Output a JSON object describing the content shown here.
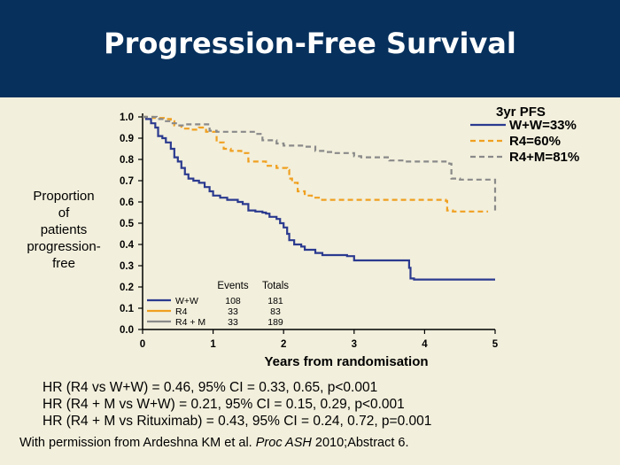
{
  "title": "Progression-Free Survival",
  "chart_data": {
    "type": "line",
    "ylabel": [
      "Proportion",
      "of",
      "patients",
      "progression-",
      "free"
    ],
    "xlabel": "Years from randomisation",
    "xlim": [
      0,
      5
    ],
    "ylim": [
      0,
      1
    ],
    "xticks": [
      "0",
      "1",
      "2",
      "3",
      "4",
      "5"
    ],
    "yticks": [
      "0.0",
      "0.1",
      "0.2",
      "0.3",
      "0.4",
      "0.5",
      "0.6",
      "0.7",
      "0.8",
      "0.9",
      "1.0"
    ],
    "legend_title": "3yr PFS",
    "series": [
      {
        "name": "W+W=33%",
        "color": "#2b3a8f",
        "dash": "",
        "points": [
          [
            0,
            1.0
          ],
          [
            0.05,
            0.99
          ],
          [
            0.12,
            0.97
          ],
          [
            0.18,
            0.95
          ],
          [
            0.22,
            0.91
          ],
          [
            0.28,
            0.9
          ],
          [
            0.33,
            0.88
          ],
          [
            0.4,
            0.85
          ],
          [
            0.45,
            0.81
          ],
          [
            0.5,
            0.79
          ],
          [
            0.55,
            0.76
          ],
          [
            0.6,
            0.73
          ],
          [
            0.65,
            0.71
          ],
          [
            0.72,
            0.7
          ],
          [
            0.8,
            0.69
          ],
          [
            0.88,
            0.67
          ],
          [
            0.95,
            0.65
          ],
          [
            1.0,
            0.63
          ],
          [
            1.1,
            0.62
          ],
          [
            1.2,
            0.61
          ],
          [
            1.35,
            0.6
          ],
          [
            1.42,
            0.59
          ],
          [
            1.5,
            0.56
          ],
          [
            1.6,
            0.555
          ],
          [
            1.7,
            0.55
          ],
          [
            1.75,
            0.545
          ],
          [
            1.8,
            0.53
          ],
          [
            1.9,
            0.52
          ],
          [
            1.95,
            0.5
          ],
          [
            2.0,
            0.48
          ],
          [
            2.05,
            0.45
          ],
          [
            2.08,
            0.42
          ],
          [
            2.15,
            0.4
          ],
          [
            2.25,
            0.39
          ],
          [
            2.3,
            0.375
          ],
          [
            2.45,
            0.36
          ],
          [
            2.55,
            0.35
          ],
          [
            2.9,
            0.345
          ],
          [
            3.0,
            0.325
          ],
          [
            3.7,
            0.325
          ],
          [
            3.78,
            0.29
          ],
          [
            3.8,
            0.24
          ],
          [
            3.85,
            0.235
          ],
          [
            5.0,
            0.235
          ]
        ]
      },
      {
        "name": "R4=60%",
        "color": "#f0a020",
        "dash": "6,4",
        "points": [
          [
            0,
            1.0
          ],
          [
            0.15,
            0.995
          ],
          [
            0.3,
            0.99
          ],
          [
            0.4,
            0.98
          ],
          [
            0.45,
            0.96
          ],
          [
            0.55,
            0.945
          ],
          [
            0.65,
            0.94
          ],
          [
            0.8,
            0.95
          ],
          [
            0.9,
            0.93
          ],
          [
            1.05,
            0.88
          ],
          [
            1.15,
            0.85
          ],
          [
            1.25,
            0.84
          ],
          [
            1.4,
            0.83
          ],
          [
            1.5,
            0.79
          ],
          [
            1.75,
            0.77
          ],
          [
            1.9,
            0.76
          ],
          [
            2.05,
            0.75
          ],
          [
            2.08,
            0.71
          ],
          [
            2.12,
            0.69
          ],
          [
            2.2,
            0.65
          ],
          [
            2.3,
            0.63
          ],
          [
            2.4,
            0.62
          ],
          [
            2.5,
            0.61
          ],
          [
            3.0,
            0.61
          ],
          [
            4.2,
            0.61
          ],
          [
            4.3,
            0.605
          ],
          [
            4.32,
            0.56
          ],
          [
            4.4,
            0.555
          ],
          [
            4.9,
            0.555
          ]
        ]
      },
      {
        "name": "R4+M=81%",
        "color": "#8a8a8a",
        "dash": "6,4",
        "points": [
          [
            0,
            1.0
          ],
          [
            0.2,
            0.99
          ],
          [
            0.3,
            0.98
          ],
          [
            0.4,
            0.97
          ],
          [
            0.5,
            0.96
          ],
          [
            0.6,
            0.965
          ],
          [
            0.8,
            0.965
          ],
          [
            0.95,
            0.935
          ],
          [
            1.05,
            0.93
          ],
          [
            1.3,
            0.93
          ],
          [
            1.6,
            0.92
          ],
          [
            1.7,
            0.89
          ],
          [
            1.9,
            0.875
          ],
          [
            2.0,
            0.865
          ],
          [
            2.3,
            0.86
          ],
          [
            2.45,
            0.84
          ],
          [
            2.6,
            0.835
          ],
          [
            2.7,
            0.83
          ],
          [
            3.0,
            0.815
          ],
          [
            3.1,
            0.81
          ],
          [
            3.4,
            0.81
          ],
          [
            3.5,
            0.795
          ],
          [
            3.7,
            0.79
          ],
          [
            4.35,
            0.78
          ],
          [
            4.38,
            0.71
          ],
          [
            4.5,
            0.705
          ],
          [
            4.95,
            0.705
          ],
          [
            5.0,
            0.7
          ],
          [
            5.0,
            0.56
          ]
        ]
      }
    ],
    "inset_table": {
      "headers": [
        "Events",
        "Totals"
      ],
      "rows": [
        {
          "label": "W+W",
          "events": "108",
          "totals": "181",
          "color": "#2b3a8f",
          "dash": ""
        },
        {
          "label": "R4",
          "events": "33",
          "totals": "83",
          "color": "#f0a020",
          "dash": ""
        },
        {
          "label": "R4 + M",
          "events": "33",
          "totals": "189",
          "color": "#8a8a8a",
          "dash": ""
        }
      ]
    }
  },
  "hr_lines": [
    "HR (R4 vs W+W) = 0.46, 95% CI = 0.33, 0.65, p<0.001",
    "HR (R4 + M vs W+W) = 0.21, 95% CI = 0.15, 0.29, p<0.001",
    "HR (R4 + M vs Rituximab) = 0.43, 95% CI = 0.24, 0.72, p=0.001"
  ],
  "credit": {
    "prefix": "With permission from Ardeshna KM et al. ",
    "journal": "Proc ASH",
    "suffix": " 2010;Abstract 6."
  }
}
